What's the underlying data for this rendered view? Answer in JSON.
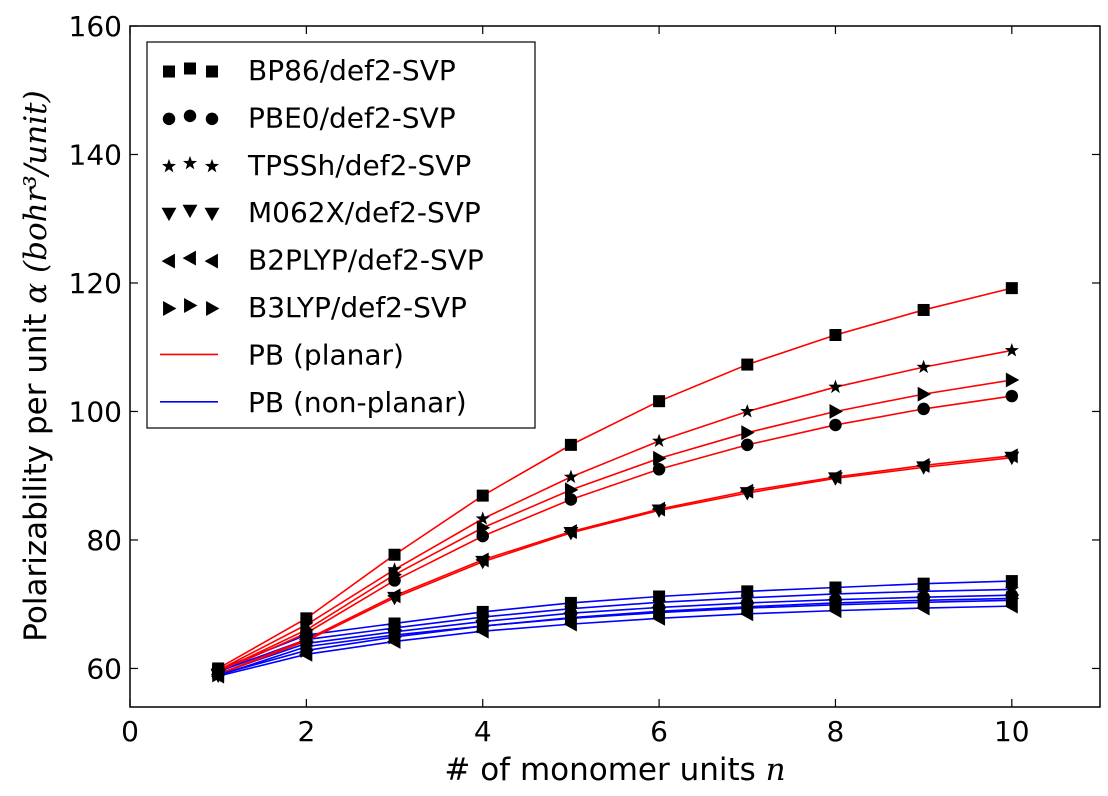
{
  "chart_data": {
    "type": "line",
    "xlabel_text": "# of monomer units ",
    "xlabel_math": "n",
    "ylabel_text": "Polarizability per unit ",
    "ylabel_math": "α (bohr³/unit)",
    "xlim": [
      0,
      11
    ],
    "ylim": [
      54,
      160
    ],
    "xticks": [
      0,
      2,
      4,
      6,
      8,
      10
    ],
    "yticks": [
      60,
      80,
      100,
      120,
      140,
      160
    ],
    "grid": false,
    "legend_position": "top-left",
    "x": [
      1,
      2,
      3,
      4,
      5,
      6,
      7,
      8,
      9,
      10
    ],
    "series": [
      {
        "name": "BP86/def2-SVP",
        "marker": "square",
        "planar": [
          60.0,
          67.8,
          77.7,
          86.9,
          94.8,
          101.6,
          107.3,
          111.9,
          115.8,
          119.2
        ],
        "nonplanar": [
          59.8,
          65.2,
          67.0,
          68.8,
          70.2,
          71.2,
          72.0,
          72.6,
          73.2,
          73.6
        ]
      },
      {
        "name": "PBE0/def2-SVP",
        "marker": "circle",
        "planar": [
          59.4,
          65.5,
          73.7,
          80.6,
          86.3,
          91.0,
          94.8,
          97.9,
          100.4,
          102.4
        ],
        "nonplanar": [
          59.2,
          63.9,
          65.7,
          67.3,
          68.6,
          69.5,
          70.2,
          70.7,
          71.1,
          71.4
        ]
      },
      {
        "name": "TPSSh/def2-SVP",
        "marker": "star",
        "planar": [
          59.7,
          66.8,
          75.4,
          83.3,
          89.8,
          95.4,
          100.0,
          103.8,
          106.9,
          109.5
        ],
        "nonplanar": [
          59.5,
          64.5,
          66.3,
          68.0,
          69.3,
          70.3,
          71.0,
          71.6,
          72.0,
          72.3
        ]
      },
      {
        "name": "M062X/def2-SVP",
        "marker": "triangle-down",
        "planar": [
          59.0,
          64.3,
          71.0,
          76.6,
          81.1,
          84.6,
          87.3,
          89.6,
          91.3,
          92.8
        ],
        "nonplanar": [
          58.9,
          63.4,
          65.2,
          66.6,
          67.8,
          68.7,
          69.4,
          69.9,
          70.3,
          70.6
        ]
      },
      {
        "name": "B2PLYP/def2-SVP",
        "marker": "triangle-left",
        "planar": [
          59.1,
          64.5,
          71.3,
          76.9,
          81.3,
          84.8,
          87.6,
          89.8,
          91.6,
          93.1
        ],
        "nonplanar": [
          58.8,
          62.2,
          64.2,
          65.8,
          66.9,
          67.8,
          68.5,
          69.0,
          69.4,
          69.7
        ]
      },
      {
        "name": "B3LYP/def2-SVP",
        "marker": "triangle-right",
        "planar": [
          59.5,
          66.0,
          74.6,
          81.9,
          87.8,
          92.7,
          96.7,
          100.0,
          102.7,
          104.9
        ],
        "nonplanar": [
          59.0,
          62.8,
          64.9,
          66.6,
          67.9,
          68.9,
          69.6,
          70.2,
          70.6,
          70.9
        ]
      }
    ],
    "line_legend": [
      {
        "name": "PB (planar)",
        "color": "#ff0000"
      },
      {
        "name": "PB (non-planar)",
        "color": "#0000ff"
      }
    ],
    "colors": {
      "planar": "#ff0000",
      "nonplanar": "#0000ff",
      "marker": "#000000"
    }
  }
}
